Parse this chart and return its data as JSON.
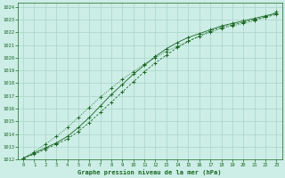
{
  "title": "Graphe pression niveau de la mer (hPa)",
  "bg_color": "#cceee6",
  "grid_color": "#aad4c8",
  "line_color": "#1a6622",
  "xlim": [
    -0.5,
    23.5
  ],
  "ylim": [
    1012,
    1024.3
  ],
  "yticks": [
    1012,
    1013,
    1014,
    1015,
    1016,
    1017,
    1018,
    1019,
    1020,
    1021,
    1022,
    1023,
    1024
  ],
  "xticks": [
    0,
    1,
    2,
    3,
    4,
    5,
    6,
    7,
    8,
    9,
    10,
    11,
    12,
    13,
    14,
    15,
    16,
    17,
    18,
    19,
    20,
    21,
    22,
    23
  ],
  "series1": [
    1012.1,
    1012.5,
    1012.9,
    1013.3,
    1013.8,
    1014.5,
    1015.3,
    1016.2,
    1017.1,
    1017.9,
    1018.7,
    1019.4,
    1020.1,
    1020.7,
    1021.2,
    1021.6,
    1021.9,
    1022.2,
    1022.5,
    1022.7,
    1022.9,
    1023.1,
    1023.3,
    1023.5
  ],
  "series2": [
    1012.1,
    1012.4,
    1012.8,
    1013.2,
    1013.6,
    1014.2,
    1014.9,
    1015.7,
    1016.5,
    1017.3,
    1018.1,
    1018.9,
    1019.6,
    1020.2,
    1020.8,
    1021.3,
    1021.7,
    1022.1,
    1022.4,
    1022.6,
    1022.8,
    1023.0,
    1023.2,
    1023.4
  ],
  "series3": [
    1012.1,
    1012.6,
    1013.2,
    1013.8,
    1014.5,
    1015.3,
    1016.1,
    1016.9,
    1017.6,
    1018.3,
    1018.9,
    1019.5,
    1020.0,
    1020.5,
    1020.9,
    1021.3,
    1021.7,
    1022.0,
    1022.3,
    1022.5,
    1022.7,
    1022.9,
    1023.2,
    1023.6
  ]
}
